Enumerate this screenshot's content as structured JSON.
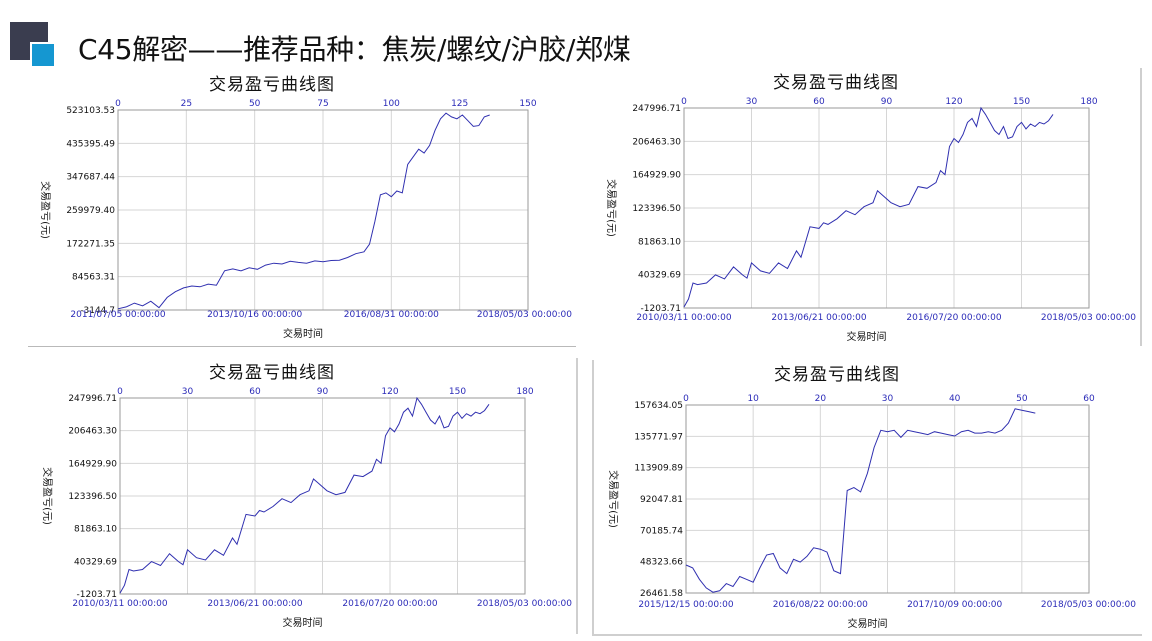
{
  "page": {
    "title": "C45解密——推荐品种：焦炭/螺纹/沪胶/郑煤"
  },
  "chart_data": [
    {
      "type": "line",
      "title": "交易盈亏曲线图",
      "xlabel": "交易时间",
      "ylabel": "交易盈亏(元)",
      "top_axis_ticks": [
        "0",
        "25",
        "50",
        "75",
        "100",
        "125",
        "150"
      ],
      "top_axis_range": [
        0,
        150
      ],
      "y_ticks": [
        "-3144.7",
        "84563.31",
        "172271.35",
        "259979.40",
        "347687.44",
        "435395.49",
        "523103.53"
      ],
      "ylim": [
        -3144.7,
        523103.53
      ],
      "x_date_labels": [
        "2011/07/05 00:00:00",
        "2013/10/16 00:00:00",
        "2016/08/31 00:00:00",
        "2018/05/03 00:00:00"
      ],
      "grid": true,
      "line_color": "#3030b0",
      "series": [
        {
          "x": [
            0,
            3,
            6,
            9,
            12,
            15,
            18,
            21,
            24,
            27,
            30,
            33,
            36,
            39,
            42,
            45,
            48,
            51,
            54,
            57,
            60,
            63,
            66,
            69,
            72,
            75,
            78,
            81,
            84,
            87,
            90,
            92,
            94,
            96,
            98,
            100,
            102,
            104,
            106,
            108,
            110,
            112,
            114,
            116,
            118,
            120,
            122,
            124,
            126,
            128,
            130,
            132,
            134,
            136
          ],
          "y": [
            0,
            5000,
            15000,
            8000,
            20000,
            3000,
            30000,
            45000,
            55000,
            60000,
            58000,
            65000,
            62000,
            100000,
            105000,
            100000,
            108000,
            104000,
            115000,
            120000,
            118000,
            125000,
            122000,
            120000,
            126000,
            124000,
            127000,
            128000,
            135000,
            145000,
            150000,
            170000,
            230000,
            300000,
            305000,
            295000,
            310000,
            305000,
            380000,
            400000,
            420000,
            410000,
            430000,
            470000,
            500000,
            515000,
            505000,
            500000,
            510000,
            495000,
            480000,
            482000,
            505000,
            510000
          ]
        }
      ]
    },
    {
      "type": "line",
      "title": "交易盈亏曲线图",
      "xlabel": "交易时间",
      "ylabel": "交易盈亏(元)",
      "top_axis_ticks": [
        "0",
        "30",
        "60",
        "90",
        "120",
        "150",
        "180"
      ],
      "top_axis_range": [
        0,
        180
      ],
      "y_ticks": [
        "-1203.71",
        "40329.69",
        "81863.10",
        "123396.50",
        "164929.90",
        "206463.30",
        "247996.71"
      ],
      "ylim": [
        -1203.71,
        247996.71
      ],
      "x_date_labels": [
        "2010/03/11 00:00:00",
        "2013/06/21 00:00:00",
        "2016/07/20 00:00:00",
        "2018/05/03 00:00:00"
      ],
      "grid": true,
      "line_color": "#3030b0",
      "series": [
        {
          "x": [
            0,
            2,
            4,
            6,
            10,
            14,
            18,
            22,
            26,
            28,
            30,
            34,
            38,
            42,
            46,
            50,
            52,
            56,
            60,
            62,
            64,
            68,
            72,
            76,
            80,
            84,
            86,
            88,
            92,
            96,
            100,
            104,
            108,
            112,
            114,
            116,
            118,
            120,
            122,
            124,
            126,
            128,
            130,
            132,
            134,
            136,
            138,
            140,
            142,
            144,
            146,
            148,
            150,
            152,
            154,
            156,
            158,
            160,
            162,
            164
          ],
          "y": [
            0,
            10000,
            30000,
            28000,
            30000,
            40000,
            35000,
            50000,
            40000,
            36000,
            55000,
            45000,
            42000,
            55000,
            48000,
            70000,
            62000,
            100000,
            98000,
            105000,
            103000,
            110000,
            120000,
            115000,
            125000,
            130000,
            145000,
            140000,
            130000,
            125000,
            128000,
            150000,
            148000,
            155000,
            170000,
            165000,
            200000,
            210000,
            205000,
            215000,
            230000,
            235000,
            225000,
            248000,
            240000,
            230000,
            220000,
            215000,
            225000,
            210000,
            212000,
            225000,
            230000,
            222000,
            228000,
            225000,
            230000,
            228000,
            232000,
            240000
          ]
        }
      ]
    },
    {
      "type": "line",
      "title": "交易盈亏曲线图",
      "xlabel": "交易时间",
      "ylabel": "交易盈亏(元)",
      "top_axis_ticks": [
        "0",
        "30",
        "60",
        "90",
        "120",
        "150",
        "180"
      ],
      "top_axis_range": [
        0,
        180
      ],
      "y_ticks": [
        "-1203.71",
        "40329.69",
        "81863.10",
        "123396.50",
        "164929.90",
        "206463.30",
        "247996.71"
      ],
      "ylim": [
        -1203.71,
        247996.71
      ],
      "x_date_labels": [
        "2010/03/11 00:00:00",
        "2013/06/21 00:00:00",
        "2016/07/20 00:00:00",
        "2018/05/03 00:00:00"
      ],
      "grid": true,
      "line_color": "#3030b0",
      "series": [
        {
          "x": [
            0,
            2,
            4,
            6,
            10,
            14,
            18,
            22,
            26,
            28,
            30,
            34,
            38,
            42,
            46,
            50,
            52,
            56,
            60,
            62,
            64,
            68,
            72,
            76,
            80,
            84,
            86,
            88,
            92,
            96,
            100,
            104,
            108,
            112,
            114,
            116,
            118,
            120,
            122,
            124,
            126,
            128,
            130,
            132,
            134,
            136,
            138,
            140,
            142,
            144,
            146,
            148,
            150,
            152,
            154,
            156,
            158,
            160,
            162,
            164
          ],
          "y": [
            0,
            10000,
            30000,
            28000,
            30000,
            40000,
            35000,
            50000,
            40000,
            36000,
            55000,
            45000,
            42000,
            55000,
            48000,
            70000,
            62000,
            100000,
            98000,
            105000,
            103000,
            110000,
            120000,
            115000,
            125000,
            130000,
            145000,
            140000,
            130000,
            125000,
            128000,
            150000,
            148000,
            155000,
            170000,
            165000,
            200000,
            210000,
            205000,
            215000,
            230000,
            235000,
            225000,
            248000,
            240000,
            230000,
            220000,
            215000,
            225000,
            210000,
            212000,
            225000,
            230000,
            222000,
            228000,
            225000,
            230000,
            228000,
            232000,
            240000
          ]
        }
      ]
    },
    {
      "type": "line",
      "title": "交易盈亏曲线图",
      "xlabel": "交易时间",
      "ylabel": "交易盈亏(元)",
      "top_axis_ticks": [
        "0",
        "10",
        "20",
        "30",
        "40",
        "50",
        "60"
      ],
      "top_axis_range": [
        0,
        60
      ],
      "y_ticks": [
        "26461.58",
        "48323.66",
        "70185.74",
        "92047.81",
        "113909.89",
        "135771.97",
        "157634.05"
      ],
      "ylim": [
        26461.58,
        157634.05
      ],
      "x_date_labels": [
        "2015/12/15 00:00:00",
        "2016/08/22 00:00:00",
        "2017/10/09 00:00:00",
        "2018/05/03 00:00:00"
      ],
      "grid": true,
      "line_color": "#3030b0",
      "series": [
        {
          "x": [
            0,
            1,
            2,
            3,
            4,
            5,
            6,
            7,
            8,
            9,
            10,
            11,
            12,
            13,
            14,
            15,
            16,
            17,
            18,
            19,
            20,
            21,
            22,
            23,
            24,
            25,
            26,
            27,
            28,
            29,
            30,
            31,
            32,
            33,
            34,
            35,
            36,
            37,
            38,
            39,
            40,
            41,
            42,
            43,
            44,
            45,
            46,
            47,
            48,
            49,
            50,
            51,
            52
          ],
          "y": [
            46000,
            44000,
            36000,
            30000,
            27000,
            28000,
            33000,
            31000,
            38000,
            36000,
            34000,
            44000,
            53000,
            54000,
            44000,
            40000,
            50000,
            48000,
            52000,
            58000,
            57000,
            55000,
            42000,
            40000,
            98000,
            100000,
            97000,
            110000,
            128000,
            140000,
            139000,
            140000,
            135000,
            140000,
            139000,
            138000,
            137000,
            139000,
            138000,
            137000,
            136000,
            139000,
            140000,
            138000,
            138000,
            139000,
            138000,
            140000,
            145000,
            155000,
            154000,
            153000,
            152000
          ]
        }
      ]
    }
  ]
}
